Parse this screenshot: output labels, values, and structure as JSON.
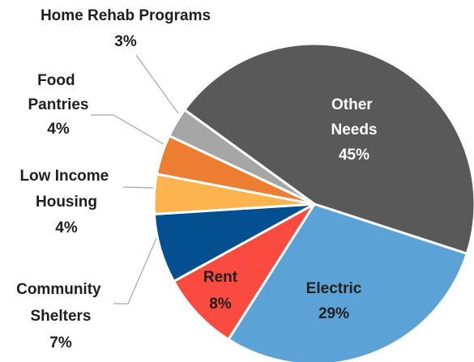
{
  "chart_data": {
    "type": "pie",
    "categories": [
      "Other Needs",
      "Electric",
      "Rent",
      "Community Shelters",
      "Low Income Housing",
      "Food Pantries",
      "Home Rehab Programs"
    ],
    "values": [
      45,
      29,
      8,
      7,
      4,
      4,
      3
    ],
    "value_labels": [
      "45%",
      "29%",
      "8%",
      "7%",
      "4%",
      "4%",
      "3%"
    ],
    "colors": [
      "#595959",
      "#5ba3d6",
      "#fb4a3f",
      "#044f8f",
      "#fdb44f",
      "#ed7d31",
      "#a6a6a6"
    ]
  }
}
